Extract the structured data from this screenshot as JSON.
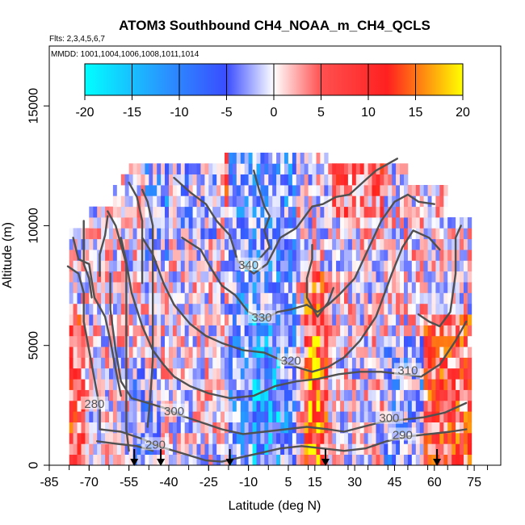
{
  "chart_data": {
    "type": "heatmap",
    "title": "ATOM3 Southbound CH4_NOAA_m_CH4_QCLS",
    "flights_text": "Flts: 2,3,4,5,6,7",
    "mmdd_text": "MMDD: 1001,1004,1006,1008,1011,1014",
    "xlabel": "Latitude (deg N)",
    "ylabel": "Altitude (m)",
    "xlim": [
      -85,
      85
    ],
    "ylim": [
      0,
      17500
    ],
    "x_ticks": [
      -85,
      -70,
      -55,
      -40,
      -25,
      -10,
      5,
      15,
      30,
      45,
      60,
      75
    ],
    "x_tick_labels": [
      "-85",
      "-70",
      "-55",
      "-40",
      "-25",
      "-10",
      "5",
      "15",
      "30",
      "45",
      "60",
      "75"
    ],
    "y_ticks": [
      0,
      5000,
      10000,
      15000
    ],
    "y_tick_labels": [
      "0",
      "5000",
      "10000",
      "15000"
    ],
    "colorbar": {
      "min": -20,
      "max": 20,
      "ticks": [
        -20,
        -15,
        -10,
        -5,
        0,
        5,
        10,
        15,
        20
      ],
      "tick_labels": [
        "-20",
        "-15",
        "-10",
        "-5",
        "0",
        "5",
        "10",
        "15",
        "20"
      ],
      "colors": [
        "#00ffff",
        "#3a4dff",
        "#ffffff",
        "#ff3030",
        "#ffff00"
      ]
    },
    "contour_labels": [
      {
        "text": "340",
        "lat": -10,
        "alt": 8300
      },
      {
        "text": "330",
        "lat": -5,
        "alt": 6100
      },
      {
        "text": "320",
        "lat": 6,
        "alt": 4300
      },
      {
        "text": "310",
        "lat": 50,
        "alt": 3900
      },
      {
        "text": "300",
        "lat": -38,
        "alt": 2200
      },
      {
        "text": "300",
        "lat": 43,
        "alt": 1900
      },
      {
        "text": "290",
        "lat": -45,
        "alt": 800
      },
      {
        "text": "290",
        "lat": 48,
        "alt": 1200
      },
      {
        "text": "280",
        "lat": -68,
        "alt": 2500
      }
    ],
    "contours": [
      {
        "label": "340",
        "points": [
          [
            -38,
            12000
          ],
          [
            -32,
            11400
          ],
          [
            -26,
            10900
          ],
          [
            -22,
            10200
          ],
          [
            -17,
            9600
          ],
          [
            -14,
            8500
          ],
          [
            -8,
            8000
          ],
          [
            -3,
            8400
          ],
          [
            2,
            9500
          ],
          [
            8,
            9900
          ],
          [
            14,
            10800
          ],
          [
            18,
            10900
          ],
          [
            23,
            11200
          ],
          [
            28,
            11300
          ],
          [
            33,
            11800
          ],
          [
            38,
            12300
          ],
          [
            46,
            12800
          ]
        ]
      },
      {
        "label": "330",
        "points": [
          [
            -35,
            9500
          ],
          [
            -28,
            9000
          ],
          [
            -24,
            8200
          ],
          [
            -20,
            7500
          ],
          [
            -15,
            7100
          ],
          [
            -10,
            6400
          ],
          [
            -4,
            6100
          ],
          [
            1,
            6400
          ],
          [
            6,
            6500
          ],
          [
            12,
            6700
          ],
          [
            16,
            6400
          ],
          [
            20,
            6700
          ],
          [
            24,
            7100
          ],
          [
            30,
            7800
          ],
          [
            35,
            9000
          ],
          [
            40,
            10200
          ],
          [
            45,
            11000
          ],
          [
            50,
            11300
          ],
          [
            54,
            11000
          ],
          [
            60,
            10900
          ]
        ]
      },
      {
        "label": "320",
        "points": [
          [
            -50,
            9500
          ],
          [
            -46,
            8800
          ],
          [
            -42,
            7600
          ],
          [
            -38,
            6700
          ],
          [
            -32,
            5900
          ],
          [
            -26,
            5400
          ],
          [
            -20,
            5100
          ],
          [
            -12,
            4800
          ],
          [
            -4,
            4700
          ],
          [
            2,
            4400
          ],
          [
            8,
            4100
          ],
          [
            14,
            3900
          ],
          [
            20,
            4100
          ],
          [
            26,
            4500
          ],
          [
            32,
            5200
          ],
          [
            38,
            6200
          ],
          [
            44,
            8000
          ],
          [
            48,
            9100
          ],
          [
            52,
            9800
          ],
          [
            58,
            9500
          ],
          [
            62,
            9000
          ]
        ]
      },
      {
        "label": "310",
        "points": [
          [
            -58,
            9500
          ],
          [
            -56,
            8500
          ],
          [
            -54,
            7200
          ],
          [
            -50,
            5800
          ],
          [
            -46,
            4800
          ],
          [
            -42,
            4200
          ],
          [
            -38,
            3700
          ],
          [
            -32,
            3300
          ],
          [
            -25,
            3000
          ],
          [
            -17,
            2800
          ],
          [
            -8,
            2900
          ],
          [
            0,
            3300
          ],
          [
            8,
            3500
          ],
          [
            16,
            3600
          ],
          [
            24,
            3800
          ],
          [
            32,
            3900
          ],
          [
            40,
            3900
          ],
          [
            48,
            3800
          ],
          [
            55,
            3700
          ],
          [
            62,
            4200
          ],
          [
            68,
            5200
          ],
          [
            72,
            6000
          ]
        ]
      },
      {
        "label": "300",
        "points": [
          [
            -62,
            8000
          ],
          [
            -62,
            6500
          ],
          [
            -60,
            4800
          ],
          [
            -58,
            3500
          ],
          [
            -54,
            2800
          ],
          [
            -48,
            2600
          ],
          [
            -42,
            2400
          ],
          [
            -36,
            2100
          ],
          [
            -28,
            1800
          ],
          [
            -20,
            1500
          ],
          [
            -12,
            1300
          ],
          [
            -4,
            1400
          ],
          [
            4,
            1500
          ],
          [
            12,
            1600
          ],
          [
            20,
            1500
          ],
          [
            26,
            1400
          ],
          [
            33,
            1600
          ],
          [
            40,
            1800
          ],
          [
            48,
            1900
          ],
          [
            56,
            2000
          ],
          [
            64,
            2200
          ],
          [
            72,
            2600
          ]
        ]
      },
      {
        "label": "290",
        "points": [
          [
            -66,
            1500
          ],
          [
            -58,
            1400
          ],
          [
            -50,
            1100
          ],
          [
            -44,
            800
          ],
          [
            -38,
            600
          ],
          [
            -32,
            400
          ],
          [
            -26,
            200
          ],
          [
            -20,
            150
          ],
          [
            -14,
            300
          ],
          [
            -6,
            500
          ],
          [
            2,
            700
          ],
          [
            10,
            800
          ],
          [
            18,
            700
          ],
          [
            26,
            600
          ],
          [
            34,
            700
          ],
          [
            42,
            1000
          ],
          [
            50,
            1200
          ],
          [
            58,
            1300
          ],
          [
            66,
            1400
          ],
          [
            72,
            1500
          ]
        ]
      },
      {
        "label": "",
        "points": [
          [
            -67,
            1000
          ],
          [
            -60,
            900
          ],
          [
            -52,
            800
          ],
          [
            -46,
            600
          ]
        ]
      },
      {
        "label": "",
        "points": [
          [
            -78,
            8300
          ],
          [
            -74,
            8000
          ],
          [
            -72,
            7200
          ],
          [
            -72,
            6000
          ],
          [
            -70,
            4800
          ],
          [
            -68,
            3600
          ],
          [
            -66,
            2400
          ],
          [
            -66,
            1500
          ]
        ]
      },
      {
        "label": "",
        "points": [
          [
            -76,
            9500
          ],
          [
            -74,
            8600
          ],
          [
            -70,
            8400
          ],
          [
            -68,
            7000
          ],
          [
            -64,
            6200
          ],
          [
            -62,
            5200
          ],
          [
            -60,
            4000
          ],
          [
            -58,
            2900
          ]
        ]
      },
      {
        "label": "",
        "points": [
          [
            -63,
            10600
          ],
          [
            -60,
            10000
          ],
          [
            -58,
            9200
          ],
          [
            -56,
            8400
          ],
          [
            -56,
            7400
          ],
          [
            -56,
            6000
          ],
          [
            -56,
            4500
          ],
          [
            -56,
            3000
          ],
          [
            -56,
            1500
          ],
          [
            -55,
            600
          ]
        ]
      },
      {
        "label": "",
        "points": [
          [
            -50,
            11500
          ],
          [
            -48,
            11000
          ],
          [
            -46,
            10000
          ],
          [
            -46,
            9000
          ],
          [
            -46,
            7800
          ],
          [
            -46,
            6200
          ],
          [
            -46,
            4400
          ],
          [
            -47,
            2800
          ],
          [
            -48,
            1600
          ]
        ]
      },
      {
        "label": "",
        "points": [
          [
            -55,
            11800
          ],
          [
            -52,
            11200
          ],
          [
            -50,
            10200
          ],
          [
            -50,
            9000
          ],
          [
            -50,
            7600
          ]
        ]
      },
      {
        "label": "",
        "points": [
          [
            -63,
            10400
          ],
          [
            -64,
            9600
          ],
          [
            -66,
            8800
          ],
          [
            -66,
            7900
          ]
        ]
      },
      {
        "label": "",
        "points": [
          [
            -72,
            10200
          ],
          [
            -72,
            9400
          ],
          [
            -72,
            8400
          ],
          [
            -70,
            7800
          ],
          [
            -69,
            7000
          ]
        ]
      },
      {
        "label": "",
        "points": [
          [
            -8,
            12300
          ],
          [
            -6,
            11500
          ],
          [
            -4,
            10800
          ],
          [
            -2,
            10400
          ],
          [
            -4,
            9800
          ],
          [
            -2,
            9100
          ],
          [
            -6,
            8600
          ]
        ]
      },
      {
        "label": "",
        "points": [
          [
            14,
            9200
          ],
          [
            14,
            8600
          ],
          [
            12,
            7800
          ],
          [
            12,
            7000
          ],
          [
            16,
            6200
          ],
          [
            20,
            6800
          ],
          [
            22,
            7400
          ]
        ]
      },
      {
        "label": "",
        "points": [
          [
            54,
            6300
          ],
          [
            58,
            6000
          ],
          [
            62,
            5800
          ],
          [
            66,
            6400
          ],
          [
            68,
            8000
          ],
          [
            68,
            9500
          ],
          [
            70,
            10000
          ]
        ]
      }
    ],
    "arrows_lat": [
      -53,
      -43,
      -17,
      19,
      61
    ]
  }
}
